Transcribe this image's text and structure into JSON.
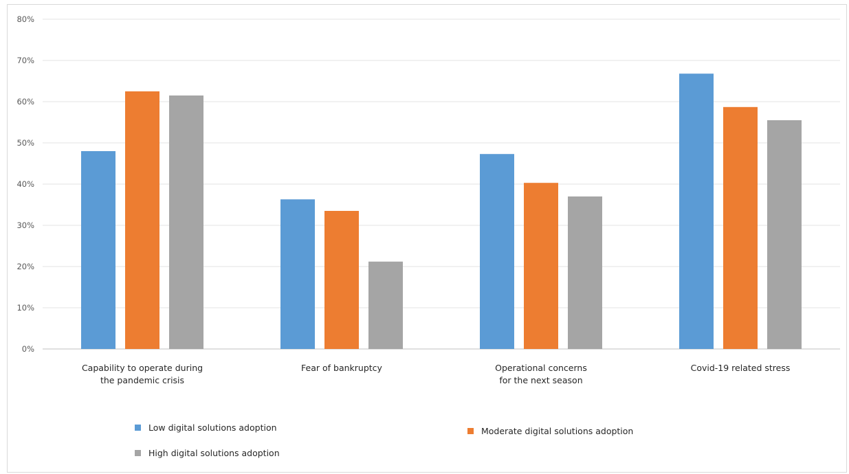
{
  "chart_data": {
    "type": "bar",
    "categories": [
      [
        "Capability to operate during",
        "the pandemic crisis"
      ],
      [
        "Fear of bankruptcy"
      ],
      [
        "Operational concerns",
        "for the next season"
      ],
      [
        "Covid-19 related stress"
      ]
    ],
    "series": [
      {
        "name": "Low digital solutions adoption",
        "color": "#5b9bd5",
        "values": [
          48,
          36.3,
          47.3,
          66.8
        ]
      },
      {
        "name": "Moderate digital solutions adoption",
        "color": "#ed7d31",
        "values": [
          62.5,
          33.5,
          40.3,
          58.7
        ]
      },
      {
        "name": "High digital solutions adoption",
        "color": "#a5a5a5",
        "values": [
          61.5,
          21.2,
          37,
          55.5
        ]
      }
    ],
    "yticks": [
      "0%",
      "10%",
      "20%",
      "30%",
      "40%",
      "50%",
      "60%",
      "70%",
      "80%"
    ],
    "ylim": [
      0,
      80
    ],
    "title": "",
    "xlabel": "",
    "ylabel": "",
    "grid": true,
    "legend_position": "bottom"
  }
}
